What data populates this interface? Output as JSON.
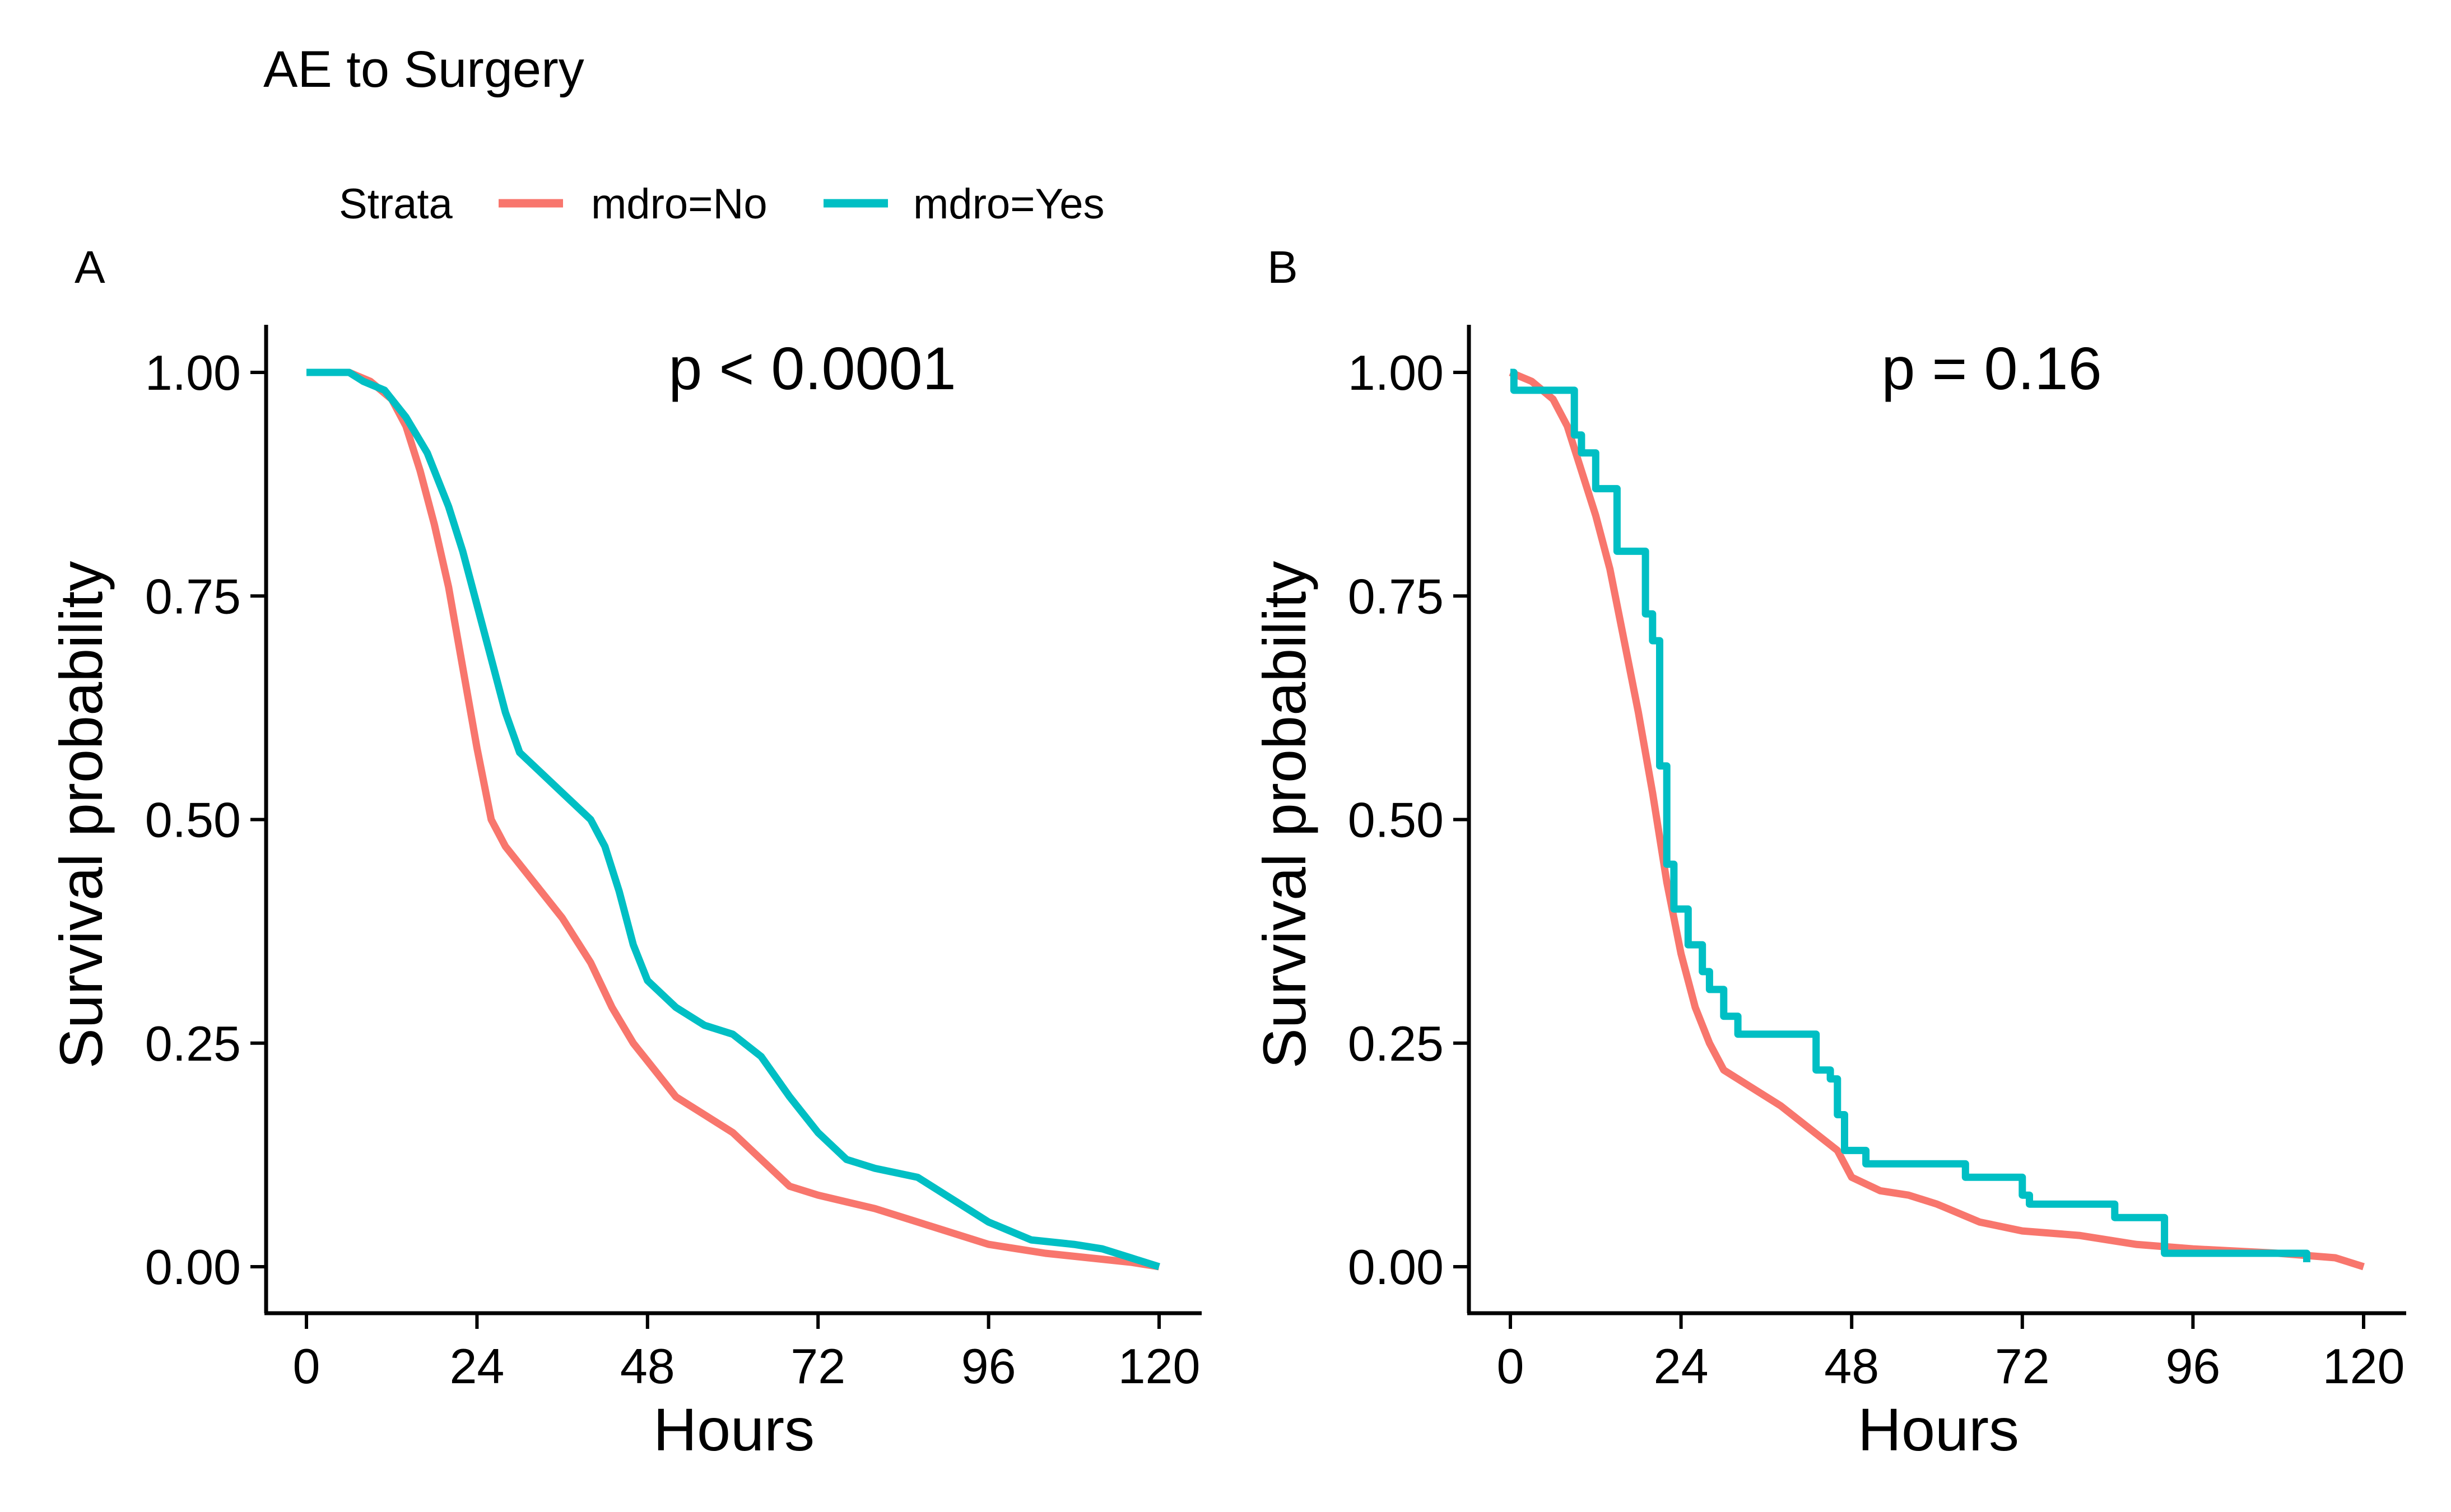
{
  "figure": {
    "title": "AE to Surgery",
    "legend": {
      "title": "Strata",
      "entries": [
        {
          "label": "mdro=No",
          "color": "#F8766D"
        },
        {
          "label": "mdro=Yes",
          "color": "#00BFC4"
        }
      ]
    }
  },
  "chart_data": [
    {
      "type": "line",
      "panel_label": "A",
      "annotation": "p < 0.0001",
      "xlabel": "Hours",
      "ylabel": "Survival probability",
      "xlim": [
        0,
        120
      ],
      "ylim": [
        0,
        1
      ],
      "x_ticks": [
        0,
        24,
        48,
        72,
        96,
        120
      ],
      "y_ticks": [
        0,
        0.25,
        0.5,
        0.75,
        1
      ],
      "y_tick_labels": [
        "0.00",
        "0.25",
        "0.50",
        "0.75",
        "1.00"
      ],
      "grid": false,
      "legend_position": "top",
      "series": [
        {
          "name": "mdro=No",
          "color": "#F8766D",
          "step": false,
          "points": [
            [
              0,
              1
            ],
            [
              6,
              1
            ],
            [
              9,
              0.99
            ],
            [
              12,
              0.97
            ],
            [
              14,
              0.94
            ],
            [
              16,
              0.89
            ],
            [
              18,
              0.83
            ],
            [
              20,
              0.76
            ],
            [
              22,
              0.67
            ],
            [
              24,
              0.58
            ],
            [
              26,
              0.5
            ],
            [
              28,
              0.47
            ],
            [
              32,
              0.43
            ],
            [
              36,
              0.39
            ],
            [
              40,
              0.34
            ],
            [
              43,
              0.29
            ],
            [
              46,
              0.25
            ],
            [
              48,
              0.23
            ],
            [
              52,
              0.19
            ],
            [
              56,
              0.17
            ],
            [
              60,
              0.15
            ],
            [
              64,
              0.12
            ],
            [
              68,
              0.09
            ],
            [
              72,
              0.08
            ],
            [
              80,
              0.065
            ],
            [
              88,
              0.045
            ],
            [
              96,
              0.025
            ],
            [
              104,
              0.015
            ],
            [
              110,
              0.01
            ],
            [
              116,
              0.005
            ],
            [
              120,
              0
            ]
          ]
        },
        {
          "name": "mdro=Yes",
          "color": "#00BFC4",
          "step": false,
          "points": [
            [
              0,
              1
            ],
            [
              6,
              1
            ],
            [
              8,
              0.99
            ],
            [
              11,
              0.98
            ],
            [
              14,
              0.95
            ],
            [
              17,
              0.91
            ],
            [
              20,
              0.85
            ],
            [
              22,
              0.8
            ],
            [
              24,
              0.74
            ],
            [
              26,
              0.68
            ],
            [
              28,
              0.62
            ],
            [
              30,
              0.575
            ],
            [
              32,
              0.56
            ],
            [
              36,
              0.53
            ],
            [
              40,
              0.5
            ],
            [
              42,
              0.47
            ],
            [
              44,
              0.42
            ],
            [
              46,
              0.36
            ],
            [
              48,
              0.32
            ],
            [
              52,
              0.29
            ],
            [
              56,
              0.27
            ],
            [
              60,
              0.26
            ],
            [
              64,
              0.235
            ],
            [
              68,
              0.19
            ],
            [
              72,
              0.15
            ],
            [
              76,
              0.12
            ],
            [
              80,
              0.11
            ],
            [
              86,
              0.1
            ],
            [
              90,
              0.08
            ],
            [
              96,
              0.05
            ],
            [
              102,
              0.03
            ],
            [
              108,
              0.025
            ],
            [
              112,
              0.02
            ],
            [
              116,
              0.01
            ],
            [
              120,
              0
            ]
          ]
        }
      ]
    },
    {
      "type": "line",
      "panel_label": "B",
      "annotation": "p = 0.16",
      "xlabel": "Hours",
      "ylabel": "Survival probability",
      "xlim": [
        0,
        120
      ],
      "ylim": [
        0,
        1
      ],
      "x_ticks": [
        0,
        24,
        48,
        72,
        96,
        120
      ],
      "y_ticks": [
        0,
        0.25,
        0.5,
        0.75,
        1
      ],
      "y_tick_labels": [
        "0.00",
        "0.25",
        "0.50",
        "0.75",
        "1.00"
      ],
      "grid": false,
      "legend_position": "top",
      "series": [
        {
          "name": "mdro=No",
          "color": "#F8766D",
          "step": false,
          "points": [
            [
              0,
              1
            ],
            [
              3,
              0.99
            ],
            [
              6,
              0.97
            ],
            [
              8,
              0.94
            ],
            [
              10,
              0.89
            ],
            [
              12,
              0.84
            ],
            [
              14,
              0.78
            ],
            [
              16,
              0.7
            ],
            [
              18,
              0.62
            ],
            [
              20,
              0.53
            ],
            [
              22,
              0.43
            ],
            [
              24,
              0.35
            ],
            [
              26,
              0.29
            ],
            [
              28,
              0.25
            ],
            [
              30,
              0.22
            ],
            [
              34,
              0.2
            ],
            [
              38,
              0.18
            ],
            [
              42,
              0.155
            ],
            [
              46,
              0.13
            ],
            [
              48,
              0.1
            ],
            [
              52,
              0.085
            ],
            [
              56,
              0.08
            ],
            [
              60,
              0.07
            ],
            [
              66,
              0.05
            ],
            [
              72,
              0.04
            ],
            [
              80,
              0.035
            ],
            [
              88,
              0.025
            ],
            [
              96,
              0.02
            ],
            [
              108,
              0.015
            ],
            [
              116,
              0.01
            ],
            [
              120,
              0
            ]
          ]
        },
        {
          "name": "mdro=Yes",
          "color": "#00BFC4",
          "step": true,
          "points": [
            [
              0,
              1
            ],
            [
              0.5,
              0.98
            ],
            [
              8,
              0.98
            ],
            [
              9,
              0.93
            ],
            [
              10,
              0.91
            ],
            [
              11,
              0.91
            ],
            [
              12,
              0.87
            ],
            [
              14,
              0.87
            ],
            [
              15,
              0.8
            ],
            [
              18,
              0.8
            ],
            [
              19,
              0.73
            ],
            [
              20,
              0.7
            ],
            [
              21,
              0.56
            ],
            [
              22,
              0.45
            ],
            [
              23,
              0.4
            ],
            [
              24,
              0.4
            ],
            [
              25,
              0.36
            ],
            [
              27,
              0.33
            ],
            [
              28,
              0.31
            ],
            [
              30,
              0.28
            ],
            [
              32,
              0.26
            ],
            [
              42,
              0.26
            ],
            [
              43,
              0.22
            ],
            [
              45,
              0.21
            ],
            [
              46,
              0.17
            ],
            [
              47,
              0.13
            ],
            [
              50,
              0.115
            ],
            [
              63,
              0.115
            ],
            [
              64,
              0.1
            ],
            [
              72,
              0.08
            ],
            [
              73,
              0.07
            ],
            [
              84,
              0.07
            ],
            [
              85,
              0.055
            ],
            [
              91,
              0.055
            ],
            [
              92,
              0.015
            ],
            [
              112,
              0.015
            ],
            [
              112,
              0.005
            ]
          ]
        }
      ]
    }
  ]
}
